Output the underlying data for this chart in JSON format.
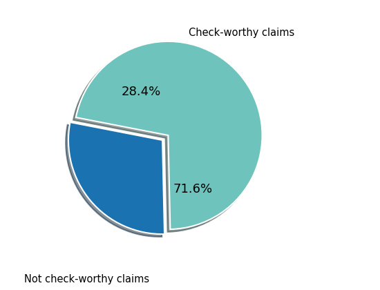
{
  "slices": [
    28.4,
    71.6
  ],
  "labels": [
    "Check-worthy claims",
    "Not check-worthy claims"
  ],
  "colors": [
    "#1a72b0",
    "#6ec4bc"
  ],
  "explode": [
    0.04,
    0.04
  ],
  "autopct_values": [
    "28.4%",
    "71.6%"
  ],
  "shadow": true,
  "startangle": 169,
  "label_fontsize": 10.5,
  "autopct_fontsize": 13,
  "background_color": "#ffffff",
  "pctdistance_0": 0.55,
  "pctdistance_1": 0.65
}
